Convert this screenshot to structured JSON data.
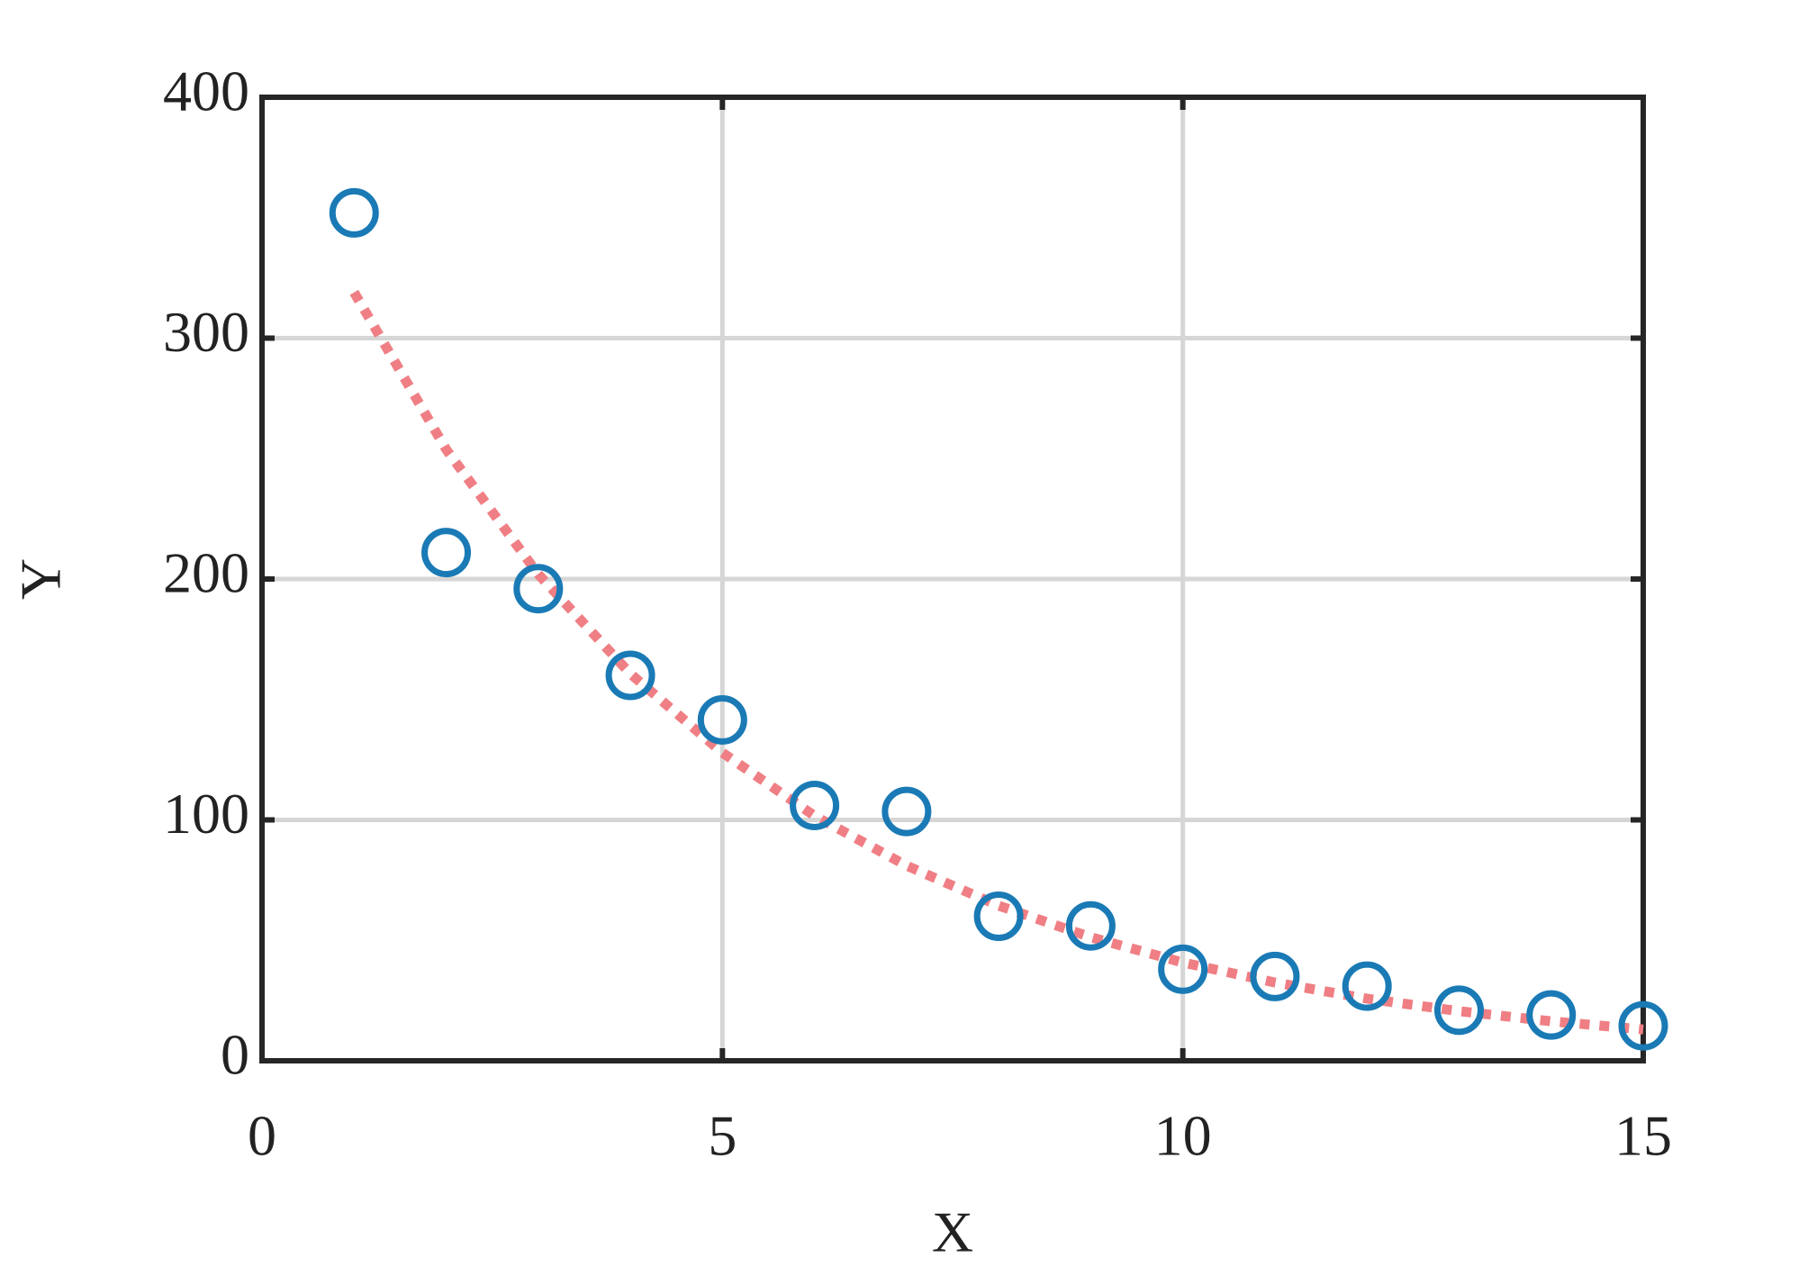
{
  "chart_data": {
    "type": "scatter",
    "xlabel": "X",
    "ylabel": "Y",
    "xlim": [
      0,
      15
    ],
    "ylim": [
      0,
      400
    ],
    "xticks": [
      0,
      5,
      10,
      15
    ],
    "yticks": [
      0,
      100,
      200,
      300,
      400
    ],
    "grid": true,
    "series": [
      {
        "mode": "markers",
        "color": "#1a7ab5",
        "x": [
          1,
          2,
          3,
          4,
          5,
          6,
          7,
          8,
          9,
          10,
          11,
          12,
          13,
          14,
          15
        ],
        "values": [
          352,
          211,
          196,
          160,
          141.5,
          106,
          103.5,
          60,
          56,
          38,
          35,
          31,
          21,
          19,
          14.5
        ]
      },
      {
        "mode": "lines",
        "color": "#ef7f84",
        "x": [
          1,
          2,
          3,
          4,
          5,
          6,
          7,
          8,
          9,
          10,
          11,
          12,
          13,
          14,
          15
        ],
        "values": [
          319,
          253.8,
          202,
          160.7,
          127.9,
          101.7,
          81,
          64.4,
          51.3,
          40.8,
          32.5,
          25.8,
          20.6,
          16.4,
          13
        ]
      }
    ]
  }
}
